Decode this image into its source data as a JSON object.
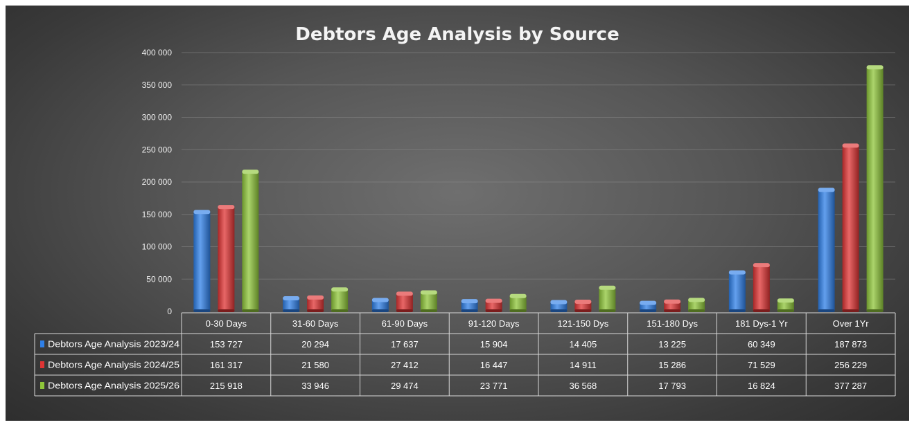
{
  "chart_data": {
    "type": "bar",
    "title": "Debtors Age Analysis by Source",
    "categories": [
      "0-30 Days",
      "31-60 Days",
      "61-90 Days",
      "91-120 Days",
      "121-150 Dys",
      "151-180 Dys",
      "181 Dys-1 Yr",
      "Over 1Yr"
    ],
    "series": [
      {
        "name": "Debtors Age Analysis 2023/24",
        "color": "#2f80e8",
        "values": [
          153727,
          20294,
          17637,
          15904,
          14405,
          13225,
          60349,
          187873
        ],
        "labels": [
          "153 727",
          "20 294",
          "17 637",
          "15 904",
          "14 405",
          "13 225",
          "60 349",
          "187 873"
        ]
      },
      {
        "name": "Debtors Age Analysis 2024/25",
        "color": "#e03434",
        "values": [
          161317,
          21580,
          27412,
          16447,
          14911,
          15286,
          71529,
          256229
        ],
        "labels": [
          "161 317",
          "21 580",
          "27 412",
          "16 447",
          "14 911",
          "15 286",
          "71 529",
          "256 229"
        ]
      },
      {
        "name": "Debtors Age Analysis 2025/26",
        "color": "#8fc63a",
        "values": [
          215918,
          33946,
          29474,
          23771,
          36568,
          17793,
          16824,
          377287
        ],
        "labels": [
          "215 918",
          "33 946",
          "29 474",
          "23 771",
          "36 568",
          "17 793",
          "16 824",
          "377 287"
        ]
      }
    ],
    "ylim": [
      0,
      400000
    ],
    "yticks": [
      0,
      50000,
      100000,
      150000,
      200000,
      250000,
      300000,
      350000,
      400000
    ],
    "ytick_labels": [
      "0",
      "50 000",
      "100 000",
      "150 000",
      "200 000",
      "250 000",
      "300 000",
      "350 000",
      "400 000"
    ],
    "grid": true,
    "legend": "data-table",
    "xlabel": "",
    "ylabel": ""
  }
}
